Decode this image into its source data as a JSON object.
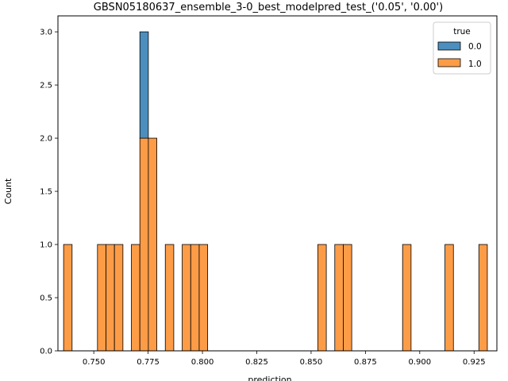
{
  "chart_data": {
    "type": "bar",
    "title": "GBSN05180637_ensemble_3-0_best_modelpred_test_('0.05', '0.00')",
    "xlabel": "prediction",
    "ylabel": "Count",
    "xlim": [
      0.7335,
      0.9355
    ],
    "ylim": [
      0,
      3.15
    ],
    "x_ticks": [
      0.75,
      0.775,
      0.8,
      0.825,
      0.85,
      0.875,
      0.9,
      0.925
    ],
    "x_tick_labels": [
      "0.750",
      "0.775",
      "0.800",
      "0.825",
      "0.850",
      "0.875",
      "0.900",
      "0.925"
    ],
    "y_ticks": [
      0,
      0.5,
      1.0,
      1.5,
      2.0,
      2.5,
      3.0
    ],
    "y_tick_labels": [
      "0.0",
      "0.5",
      "1.0",
      "1.5",
      "2.0",
      "2.5",
      "3.0"
    ],
    "bin_width": 0.0039,
    "legend": {
      "title": "true",
      "placement": "top-right",
      "entries": [
        "0.0",
        "1.0"
      ]
    },
    "series": [
      {
        "name": "0.0",
        "color": "#4c8fbf",
        "bins": [
          {
            "x0": 0.7712,
            "count": 1
          }
        ]
      },
      {
        "name": "1.0",
        "color": "#fd9c47",
        "bins": [
          {
            "x0": 0.7361,
            "count": 1
          },
          {
            "x0": 0.7517,
            "count": 1
          },
          {
            "x0": 0.7556,
            "count": 1
          },
          {
            "x0": 0.7595,
            "count": 1
          },
          {
            "x0": 0.7673,
            "count": 1
          },
          {
            "x0": 0.7712,
            "count": 2
          },
          {
            "x0": 0.7751,
            "count": 2
          },
          {
            "x0": 0.7829,
            "count": 1
          },
          {
            "x0": 0.7907,
            "count": 1
          },
          {
            "x0": 0.7946,
            "count": 1
          },
          {
            "x0": 0.7985,
            "count": 1
          },
          {
            "x0": 0.8531,
            "count": 1
          },
          {
            "x0": 0.8609,
            "count": 1
          },
          {
            "x0": 0.8648,
            "count": 1
          },
          {
            "x0": 0.8921,
            "count": 1
          },
          {
            "x0": 0.9116,
            "count": 1
          },
          {
            "x0": 0.9272,
            "count": 1
          }
        ]
      }
    ],
    "stacking": "stacked"
  }
}
